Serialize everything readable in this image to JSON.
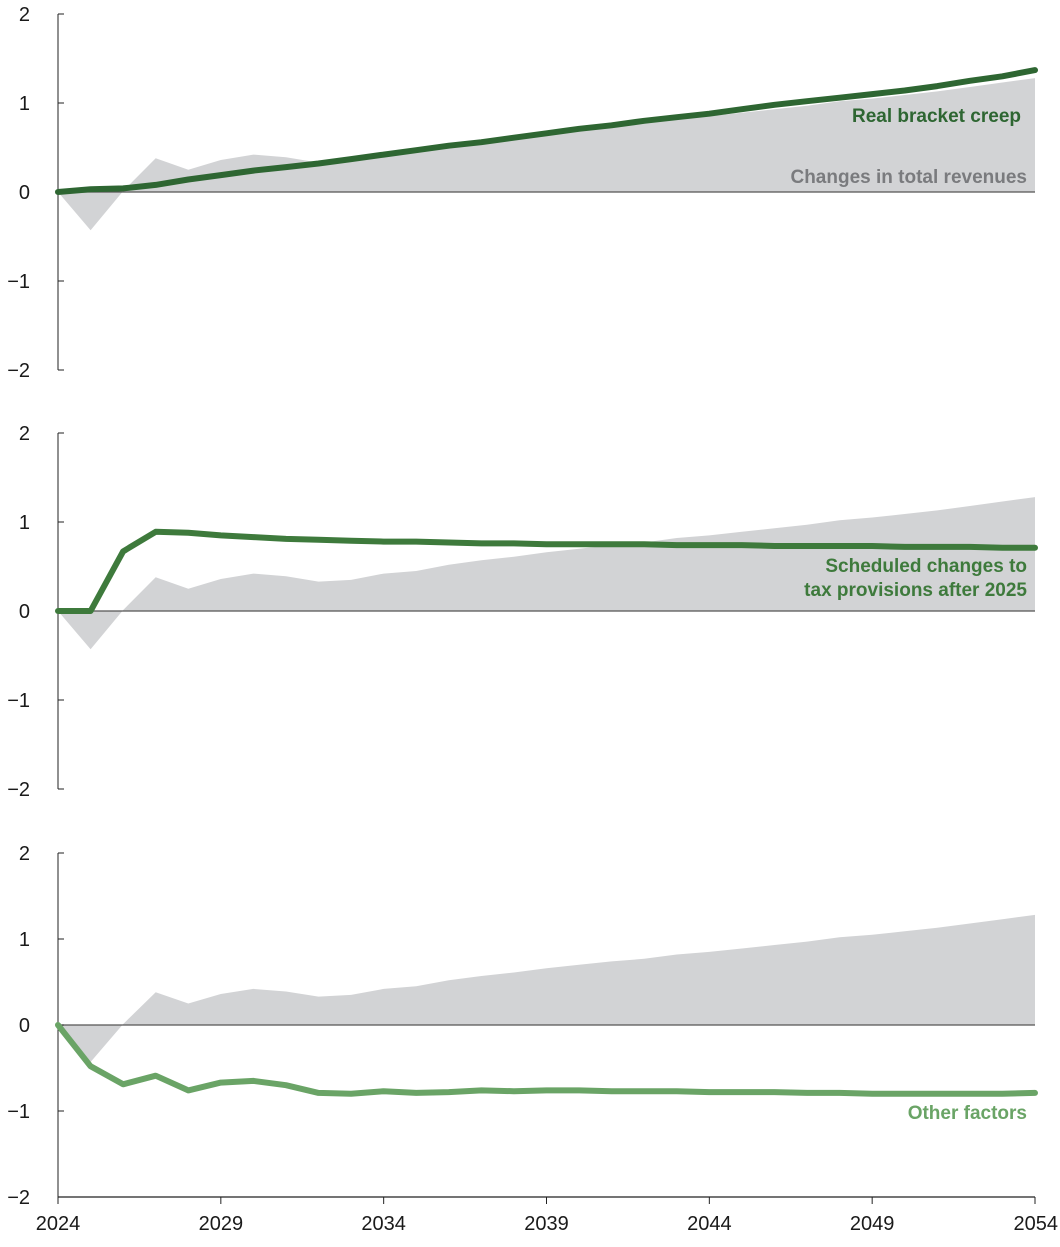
{
  "colors": {
    "area": "#d2d3d5",
    "axis": "#222222",
    "zero_line": "#555555",
    "dark_green": "#2e6632",
    "mid_green": "#3e7a3c",
    "light_green": "#6aa466",
    "gray_label": "#7a7b7e"
  },
  "chart_data": [
    {
      "type": "area",
      "panel": "top",
      "xlim": [
        2024,
        2054
      ],
      "ylim": [
        -2,
        2
      ],
      "yticks": [
        "2",
        "1",
        "0",
        "−1",
        "−2"
      ],
      "area_series": {
        "name": "Changes in total revenues",
        "x": [
          2024,
          2025,
          2026,
          2027,
          2028,
          2029,
          2030,
          2031,
          2032,
          2033,
          2034,
          2035,
          2036,
          2037,
          2038,
          2039,
          2040,
          2041,
          2042,
          2043,
          2044,
          2045,
          2046,
          2047,
          2048,
          2049,
          2050,
          2051,
          2052,
          2053,
          2054
        ],
        "values": [
          0,
          -0.43,
          0.01,
          0.38,
          0.25,
          0.36,
          0.42,
          0.39,
          0.33,
          0.35,
          0.42,
          0.45,
          0.52,
          0.57,
          0.61,
          0.66,
          0.7,
          0.74,
          0.77,
          0.82,
          0.85,
          0.89,
          0.93,
          0.97,
          1.02,
          1.05,
          1.09,
          1.13,
          1.18,
          1.23,
          1.28
        ]
      },
      "line_series": {
        "name": "Real bracket creep",
        "x": [
          2024,
          2025,
          2026,
          2027,
          2028,
          2029,
          2030,
          2031,
          2032,
          2033,
          2034,
          2035,
          2036,
          2037,
          2038,
          2039,
          2040,
          2041,
          2042,
          2043,
          2044,
          2045,
          2046,
          2047,
          2048,
          2049,
          2050,
          2051,
          2052,
          2053,
          2054
        ],
        "values": [
          0,
          0.03,
          0.04,
          0.08,
          0.14,
          0.19,
          0.24,
          0.28,
          0.32,
          0.37,
          0.42,
          0.47,
          0.52,
          0.56,
          0.61,
          0.66,
          0.71,
          0.75,
          0.8,
          0.84,
          0.88,
          0.93,
          0.98,
          1.02,
          1.06,
          1.1,
          1.14,
          1.19,
          1.25,
          1.3,
          1.37
        ]
      },
      "labels": {
        "line": "Real bracket creep",
        "area": "Changes in total revenues"
      }
    },
    {
      "type": "area",
      "panel": "middle",
      "xlim": [
        2024,
        2054
      ],
      "ylim": [
        -2,
        2
      ],
      "yticks": [
        "2",
        "1",
        "0",
        "−1",
        "−2"
      ],
      "area_series": {
        "name": "Changes in total revenues",
        "x": [
          2024,
          2025,
          2026,
          2027,
          2028,
          2029,
          2030,
          2031,
          2032,
          2033,
          2034,
          2035,
          2036,
          2037,
          2038,
          2039,
          2040,
          2041,
          2042,
          2043,
          2044,
          2045,
          2046,
          2047,
          2048,
          2049,
          2050,
          2051,
          2052,
          2053,
          2054
        ],
        "values": [
          0,
          -0.43,
          0.01,
          0.38,
          0.25,
          0.36,
          0.42,
          0.39,
          0.33,
          0.35,
          0.42,
          0.45,
          0.52,
          0.57,
          0.61,
          0.66,
          0.7,
          0.74,
          0.77,
          0.82,
          0.85,
          0.89,
          0.93,
          0.97,
          1.02,
          1.05,
          1.09,
          1.13,
          1.18,
          1.23,
          1.28
        ]
      },
      "line_series": {
        "name": "Scheduled changes to tax provisions after 2025",
        "x": [
          2024,
          2025,
          2026,
          2027,
          2028,
          2029,
          2030,
          2031,
          2032,
          2033,
          2034,
          2035,
          2036,
          2037,
          2038,
          2039,
          2040,
          2041,
          2042,
          2043,
          2044,
          2045,
          2046,
          2047,
          2048,
          2049,
          2050,
          2051,
          2052,
          2053,
          2054
        ],
        "values": [
          0,
          0,
          0.67,
          0.89,
          0.88,
          0.85,
          0.83,
          0.81,
          0.8,
          0.79,
          0.78,
          0.78,
          0.77,
          0.76,
          0.76,
          0.75,
          0.75,
          0.75,
          0.75,
          0.74,
          0.74,
          0.74,
          0.73,
          0.73,
          0.73,
          0.73,
          0.72,
          0.72,
          0.72,
          0.71,
          0.71
        ]
      },
      "labels": {
        "line_1": "Scheduled changes to",
        "line_2": "tax provisions after 2025"
      }
    },
    {
      "type": "area",
      "panel": "bottom",
      "xlim": [
        2024,
        2054
      ],
      "ylim": [
        -2,
        2
      ],
      "yticks": [
        "2",
        "1",
        "0",
        "−1",
        "−2"
      ],
      "xticks": [
        "2024",
        "2029",
        "2034",
        "2039",
        "2044",
        "2049",
        "2054"
      ],
      "area_series": {
        "name": "Changes in total revenues",
        "x": [
          2024,
          2025,
          2026,
          2027,
          2028,
          2029,
          2030,
          2031,
          2032,
          2033,
          2034,
          2035,
          2036,
          2037,
          2038,
          2039,
          2040,
          2041,
          2042,
          2043,
          2044,
          2045,
          2046,
          2047,
          2048,
          2049,
          2050,
          2051,
          2052,
          2053,
          2054
        ],
        "values": [
          0,
          -0.43,
          0.01,
          0.38,
          0.25,
          0.36,
          0.42,
          0.39,
          0.33,
          0.35,
          0.42,
          0.45,
          0.52,
          0.57,
          0.61,
          0.66,
          0.7,
          0.74,
          0.77,
          0.82,
          0.85,
          0.89,
          0.93,
          0.97,
          1.02,
          1.05,
          1.09,
          1.13,
          1.18,
          1.23,
          1.28
        ]
      },
      "line_series": {
        "name": "Other factors",
        "x": [
          2024,
          2025,
          2026,
          2027,
          2028,
          2029,
          2030,
          2031,
          2032,
          2033,
          2034,
          2035,
          2036,
          2037,
          2038,
          2039,
          2040,
          2041,
          2042,
          2043,
          2044,
          2045,
          2046,
          2047,
          2048,
          2049,
          2050,
          2051,
          2052,
          2053,
          2054
        ],
        "values": [
          0,
          -0.48,
          -0.69,
          -0.59,
          -0.76,
          -0.67,
          -0.65,
          -0.7,
          -0.79,
          -0.8,
          -0.77,
          -0.79,
          -0.78,
          -0.76,
          -0.77,
          -0.76,
          -0.76,
          -0.77,
          -0.77,
          -0.77,
          -0.78,
          -0.78,
          -0.78,
          -0.79,
          -0.79,
          -0.8,
          -0.8,
          -0.8,
          -0.8,
          -0.8,
          -0.79
        ]
      },
      "labels": {
        "line": "Other factors"
      }
    }
  ]
}
